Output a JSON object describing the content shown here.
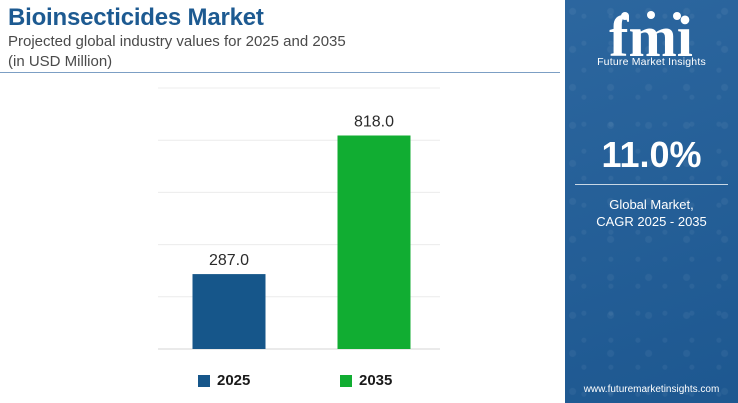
{
  "header": {
    "title": "Bioinsecticides Market",
    "subtitle_line1": "Projected global industry values for 2025 and 2035",
    "subtitle_line2": "(in USD Million)"
  },
  "chart_data": {
    "type": "bar",
    "categories": [
      "2025",
      "2035"
    ],
    "values": [
      287.0,
      818.0
    ],
    "value_labels": [
      "287.0",
      "818.0"
    ],
    "colors": [
      "#16568a",
      "#11ad32"
    ],
    "title": "Bioinsecticides Market",
    "subtitle": "Projected global industry values for 2025 and 2035 (in USD Million)",
    "xlabel": "",
    "ylabel": "",
    "ylim": [
      0,
      1000
    ],
    "grid": true,
    "legend": "bottom"
  },
  "legend": {
    "items": [
      {
        "label": "2025",
        "color": "#16568a"
      },
      {
        "label": "2035",
        "color": "#11ad32"
      }
    ]
  },
  "side_panel": {
    "logo_letters": "fmi",
    "brand_name": "Future Market Insights",
    "cagr_value": "11.0%",
    "cagr_label_line1": "Global Market,",
    "cagr_label_line2": "CAGR 2025 - 2035",
    "website": "www.futuremarketinsights.com",
    "background_color": "#1f5d99"
  }
}
